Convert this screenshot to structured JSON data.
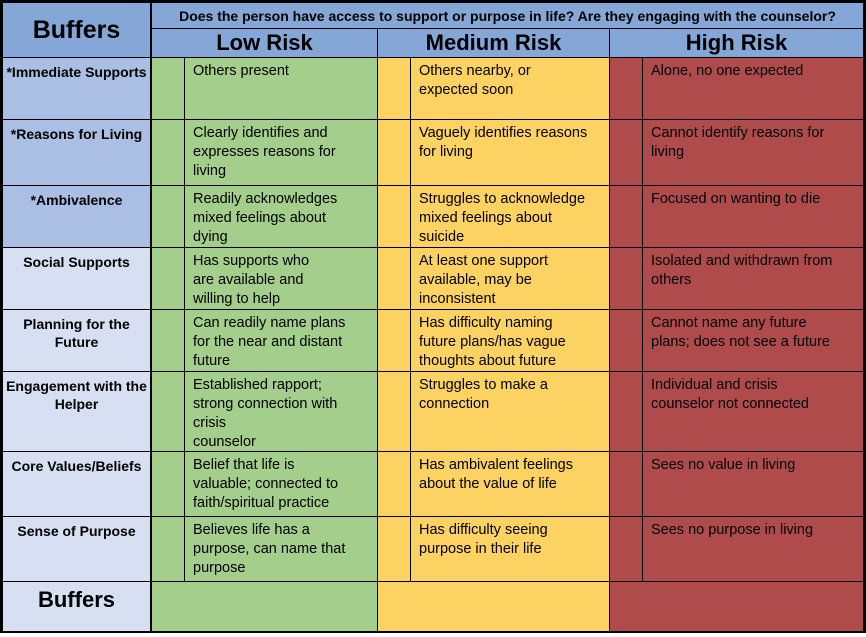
{
  "title": "Buffers suicide-risk assessment matrix",
  "colors": {
    "header_blue": "#84A7D7",
    "label_blue_dark": "#AABFE3",
    "label_blue_light": "#D7E0F2",
    "low_green": "#A3CE8B",
    "medium_yellow": "#FCD263",
    "high_red": "#AF4B4B",
    "border_black": "#000000"
  },
  "header": {
    "corner_label": "Buffers",
    "question": "Does the person have access to support or purpose in life? Are they engaging with the counselor?",
    "risk_columns": [
      "Low Risk",
      "Medium Risk",
      "High Risk"
    ]
  },
  "rows": [
    {
      "label": "*Immediate Supports",
      "low": "Others present",
      "medium": "Others nearby, or\nexpected soon",
      "high": "Alone, no one expected"
    },
    {
      "label": "*Reasons for Living",
      "low": "Clearly identifies and\nexpresses reasons for\nliving",
      "medium": "Vaguely identifies reasons\nfor living",
      "high": "Cannot identify reasons for\nliving"
    },
    {
      "label": "*Ambivalence",
      "low": "Readily acknowledges\nmixed feelings about\ndying",
      "medium": "Struggles to acknowledge\nmixed feelings about\nsuicide",
      "high": "Focused on wanting to die"
    },
    {
      "label": "Social Supports",
      "low": "Has supports who\nare available and\nwilling to help",
      "medium": "At least one support\navailable, may be\ninconsistent",
      "high": "Isolated and withdrawn from\nothers"
    },
    {
      "label": "Planning for the Future",
      "low": "Can readily name plans\nfor the near and distant\nfuture",
      "medium": "Has difficulty naming\nfuture plans/has vague\nthoughts about future",
      "high": "Cannot name any future\nplans; does not see a future"
    },
    {
      "label": "Engagement with the Helper",
      "low": "Established rapport;\nstrong connection with\ncrisis\ncounselor",
      "medium": "Struggles to make a\nconnection",
      "high": "Individual and crisis\ncounselor not connected"
    },
    {
      "label": "Core Values/Beliefs",
      "low": "Belief that life is\nvaluable; connected to\nfaith/spiritual practice",
      "medium": "Has ambivalent feelings\nabout the value of life",
      "high": "Sees no value in living"
    },
    {
      "label": "Sense of Purpose",
      "low": "Believes life has a\npurpose, can name that\npurpose",
      "medium": "Has difficulty seeing\npurpose in their life",
      "high": "Sees no purpose in living"
    }
  ],
  "footer": {
    "label": "Buffers"
  }
}
